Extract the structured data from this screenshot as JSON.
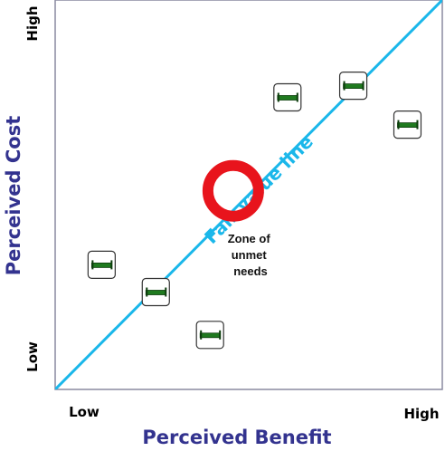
{
  "axes": {
    "x_title": "Perceived Benefit",
    "y_title": "Perceived Cost",
    "x_low": "Low",
    "x_high": "High",
    "y_low": "Low",
    "y_high": "High"
  },
  "fair_value_line": {
    "label": "Fair value line",
    "color": "#1ab7ea"
  },
  "unmet_zone": {
    "label_lines": [
      "Zone of",
      "unmet",
      "needs"
    ],
    "ring_color": "#e8141c"
  },
  "colors": {
    "axis_title": "#33338f",
    "frame": "#8a8aa0",
    "product_icon": "#1f7a1f"
  },
  "chart_data": {
    "type": "scatter",
    "xlabel": "Perceived Benefit",
    "ylabel": "Perceived Cost",
    "xlim": [
      0,
      100
    ],
    "ylim": [
      0,
      100
    ],
    "reference_line": {
      "name": "Fair value line",
      "from": [
        0,
        0
      ],
      "to": [
        100,
        100
      ]
    },
    "zone": {
      "name": "Zone of unmet needs",
      "x": 46,
      "y": 51
    },
    "points": [
      {
        "x": 12,
        "y": 32
      },
      {
        "x": 26,
        "y": 25
      },
      {
        "x": 40,
        "y": 14
      },
      {
        "x": 60,
        "y": 75
      },
      {
        "x": 77,
        "y": 78
      },
      {
        "x": 91,
        "y": 68
      }
    ]
  }
}
